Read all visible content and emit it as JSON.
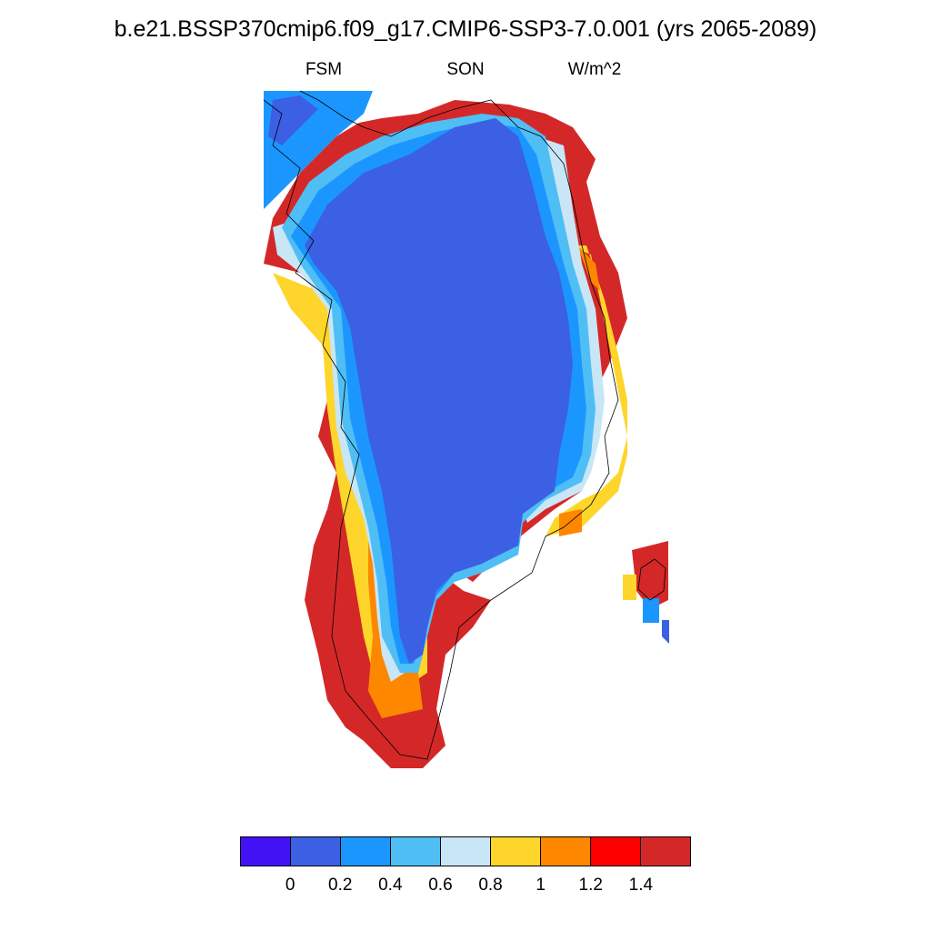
{
  "title": "b.e21.BSSP370cmip6.f09_g17.CMIP6-SSP3-7.0.001 (yrs 2065-2089)",
  "left_label": "FSM",
  "center_label": "SON",
  "right_label": "W/m^2",
  "colorbar": {
    "colors": [
      "#4212f5",
      "#3b60e4",
      "#1c96ff",
      "#4fbef5",
      "#c8e6f5",
      "#fed52a",
      "#fe8700",
      "#fe0000",
      "#d42828"
    ],
    "labels": [
      "0",
      "0.2",
      "0.4",
      "0.6",
      "0.8",
      "1",
      "1.2",
      "1.4"
    ]
  }
}
